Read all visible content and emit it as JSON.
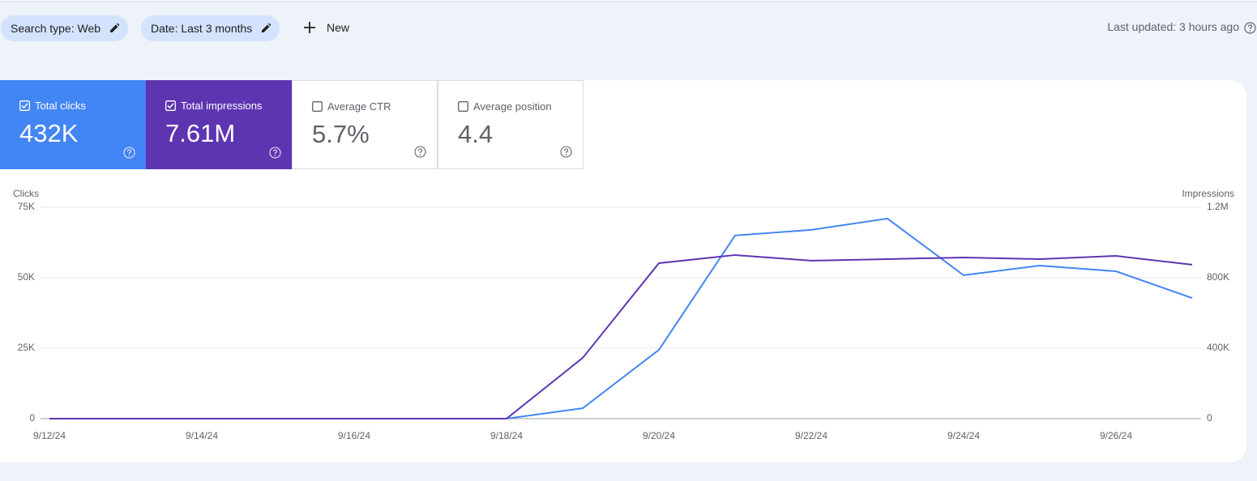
{
  "toolbar": {
    "chips": [
      "Search type: Web",
      "Date: Last 3 months"
    ],
    "new_button": "New",
    "last_updated": "Last updated: 3 hours ago"
  },
  "metrics": [
    {
      "label": "Total clicks",
      "value": "432K",
      "checked": true,
      "color": "#4285f4"
    },
    {
      "label": "Total impressions",
      "value": "7.61M",
      "checked": true,
      "color": "#5e35b1"
    },
    {
      "label": "Average CTR",
      "value": "5.7%",
      "checked": false
    },
    {
      "label": "Average position",
      "value": "4.4",
      "checked": false
    }
  ],
  "chart_data": {
    "type": "line",
    "categories": [
      "9/12/24",
      null,
      "9/14/24",
      null,
      "9/16/24",
      null,
      "9/18/24",
      null,
      "9/20/24",
      null,
      "9/22/24",
      null,
      "9/24/24",
      null,
      "9/26/24",
      null
    ],
    "ylabel": "Clicks",
    "y2label": "Impressions",
    "series": [
      {
        "color": "#4285f4",
        "axis": "y",
        "values": [
          0,
          0,
          0,
          0,
          0,
          0,
          0,
          3700,
          24400,
          65000,
          67000,
          71000,
          50900,
          54300,
          52300,
          42800
        ]
      },
      {
        "color": "#5e35b1",
        "axis": "y2",
        "values": [
          0,
          0,
          0,
          0,
          0,
          0,
          0,
          345000,
          883000,
          929000,
          897000,
          906000,
          915000,
          906000,
          924000,
          874000
        ]
      }
    ],
    "ylim": [
      0,
      75000
    ],
    "yticks": [
      0,
      {
        "value": 25000,
        "label": "25K"
      },
      {
        "value": 50000,
        "label": "50K"
      },
      {
        "value": 75000,
        "label": "75K"
      }
    ],
    "y2lim": [
      0,
      1200000
    ],
    "y2ticks": [
      0,
      {
        "value": 400000,
        "label": "400K"
      },
      {
        "value": 800000,
        "label": "800K"
      },
      {
        "value": 1200000,
        "label": "1.2M"
      }
    ],
    "grid": true
  }
}
